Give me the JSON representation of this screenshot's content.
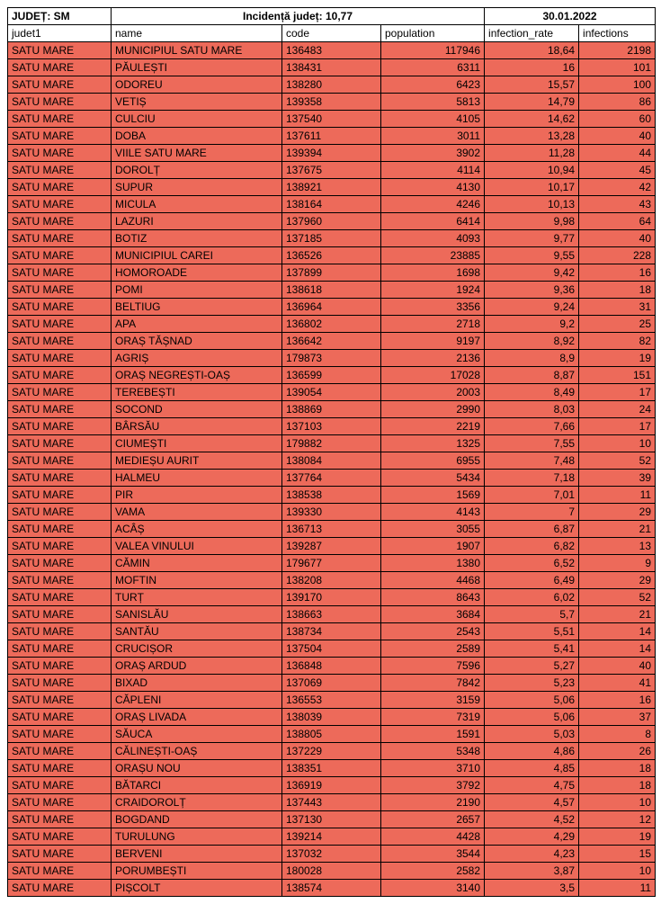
{
  "header": {
    "judet_label": "JUDEȚ: SM",
    "incidence_label": "Incidență județ: 10,77",
    "date": "30.01.2022"
  },
  "columns": {
    "judet1": "judet1",
    "name": "name",
    "code": "code",
    "population": "population",
    "infection_rate": "infection_rate",
    "infections": "infections"
  },
  "style": {
    "row_bg": "#ed6a5a",
    "border_color": "#000000",
    "header_bg": "#ffffff",
    "font_size": 12,
    "col_widths": {
      "judet": 115,
      "name": 190,
      "code": 110,
      "pop": 115,
      "rate": 105,
      "inf": 85
    },
    "align": {
      "judet": "left",
      "name": "left",
      "code": "left",
      "pop": "right",
      "rate": "right",
      "inf": "right"
    }
  },
  "rows": [
    {
      "judet": "SATU MARE",
      "name": "MUNICIPIUL SATU MARE",
      "code": "136483",
      "pop": "117946",
      "rate": "18,64",
      "inf": "2198"
    },
    {
      "judet": "SATU MARE",
      "name": "PĂULEȘTI",
      "code": "138431",
      "pop": "6311",
      "rate": "16",
      "inf": "101"
    },
    {
      "judet": "SATU MARE",
      "name": "ODOREU",
      "code": "138280",
      "pop": "6423",
      "rate": "15,57",
      "inf": "100"
    },
    {
      "judet": "SATU MARE",
      "name": "VETIȘ",
      "code": "139358",
      "pop": "5813",
      "rate": "14,79",
      "inf": "86"
    },
    {
      "judet": "SATU MARE",
      "name": "CULCIU",
      "code": "137540",
      "pop": "4105",
      "rate": "14,62",
      "inf": "60"
    },
    {
      "judet": "SATU MARE",
      "name": "DOBA",
      "code": "137611",
      "pop": "3011",
      "rate": "13,28",
      "inf": "40"
    },
    {
      "judet": "SATU MARE",
      "name": "VIILE SATU MARE",
      "code": "139394",
      "pop": "3902",
      "rate": "11,28",
      "inf": "44"
    },
    {
      "judet": "SATU MARE",
      "name": "DOROLȚ",
      "code": "137675",
      "pop": "4114",
      "rate": "10,94",
      "inf": "45"
    },
    {
      "judet": "SATU MARE",
      "name": "SUPUR",
      "code": "138921",
      "pop": "4130",
      "rate": "10,17",
      "inf": "42"
    },
    {
      "judet": "SATU MARE",
      "name": "MICULA",
      "code": "138164",
      "pop": "4246",
      "rate": "10,13",
      "inf": "43"
    },
    {
      "judet": "SATU MARE",
      "name": "LAZURI",
      "code": "137960",
      "pop": "6414",
      "rate": "9,98",
      "inf": "64"
    },
    {
      "judet": "SATU MARE",
      "name": "BOTIZ",
      "code": "137185",
      "pop": "4093",
      "rate": "9,77",
      "inf": "40"
    },
    {
      "judet": "SATU MARE",
      "name": "MUNICIPIUL CAREI",
      "code": "136526",
      "pop": "23885",
      "rate": "9,55",
      "inf": "228"
    },
    {
      "judet": "SATU MARE",
      "name": "HOMOROADE",
      "code": "137899",
      "pop": "1698",
      "rate": "9,42",
      "inf": "16"
    },
    {
      "judet": "SATU MARE",
      "name": "POMI",
      "code": "138618",
      "pop": "1924",
      "rate": "9,36",
      "inf": "18"
    },
    {
      "judet": "SATU MARE",
      "name": "BELTIUG",
      "code": "136964",
      "pop": "3356",
      "rate": "9,24",
      "inf": "31"
    },
    {
      "judet": "SATU MARE",
      "name": "APA",
      "code": "136802",
      "pop": "2718",
      "rate": "9,2",
      "inf": "25"
    },
    {
      "judet": "SATU MARE",
      "name": "ORAȘ TĂȘNAD",
      "code": "136642",
      "pop": "9197",
      "rate": "8,92",
      "inf": "82"
    },
    {
      "judet": "SATU MARE",
      "name": "AGRIȘ",
      "code": "179873",
      "pop": "2136",
      "rate": "8,9",
      "inf": "19"
    },
    {
      "judet": "SATU MARE",
      "name": "ORAȘ NEGREȘTI-OAȘ",
      "code": "136599",
      "pop": "17028",
      "rate": "8,87",
      "inf": "151"
    },
    {
      "judet": "SATU MARE",
      "name": "TEREBEȘTI",
      "code": "139054",
      "pop": "2003",
      "rate": "8,49",
      "inf": "17"
    },
    {
      "judet": "SATU MARE",
      "name": "SOCOND",
      "code": "138869",
      "pop": "2990",
      "rate": "8,03",
      "inf": "24"
    },
    {
      "judet": "SATU MARE",
      "name": "BÂRSĂU",
      "code": "137103",
      "pop": "2219",
      "rate": "7,66",
      "inf": "17"
    },
    {
      "judet": "SATU MARE",
      "name": "CIUMEȘTI",
      "code": "179882",
      "pop": "1325",
      "rate": "7,55",
      "inf": "10"
    },
    {
      "judet": "SATU MARE",
      "name": "MEDIEȘU AURIT",
      "code": "138084",
      "pop": "6955",
      "rate": "7,48",
      "inf": "52"
    },
    {
      "judet": "SATU MARE",
      "name": "HALMEU",
      "code": "137764",
      "pop": "5434",
      "rate": "7,18",
      "inf": "39"
    },
    {
      "judet": "SATU MARE",
      "name": "PIR",
      "code": "138538",
      "pop": "1569",
      "rate": "7,01",
      "inf": "11"
    },
    {
      "judet": "SATU MARE",
      "name": "VAMA",
      "code": "139330",
      "pop": "4143",
      "rate": "7",
      "inf": "29"
    },
    {
      "judet": "SATU MARE",
      "name": "ACÂȘ",
      "code": "136713",
      "pop": "3055",
      "rate": "6,87",
      "inf": "21"
    },
    {
      "judet": "SATU MARE",
      "name": "VALEA VINULUI",
      "code": "139287",
      "pop": "1907",
      "rate": "6,82",
      "inf": "13"
    },
    {
      "judet": "SATU MARE",
      "name": "CĂMIN",
      "code": "179677",
      "pop": "1380",
      "rate": "6,52",
      "inf": "9"
    },
    {
      "judet": "SATU MARE",
      "name": "MOFTIN",
      "code": "138208",
      "pop": "4468",
      "rate": "6,49",
      "inf": "29"
    },
    {
      "judet": "SATU MARE",
      "name": "TURȚ",
      "code": "139170",
      "pop": "8643",
      "rate": "6,02",
      "inf": "52"
    },
    {
      "judet": "SATU MARE",
      "name": "SANISLĂU",
      "code": "138663",
      "pop": "3684",
      "rate": "5,7",
      "inf": "21"
    },
    {
      "judet": "SATU MARE",
      "name": "SANTĂU",
      "code": "138734",
      "pop": "2543",
      "rate": "5,51",
      "inf": "14"
    },
    {
      "judet": "SATU MARE",
      "name": "CRUCIȘOR",
      "code": "137504",
      "pop": "2589",
      "rate": "5,41",
      "inf": "14"
    },
    {
      "judet": "SATU MARE",
      "name": "ORAȘ ARDUD",
      "code": "136848",
      "pop": "7596",
      "rate": "5,27",
      "inf": "40"
    },
    {
      "judet": "SATU MARE",
      "name": "BIXAD",
      "code": "137069",
      "pop": "7842",
      "rate": "5,23",
      "inf": "41"
    },
    {
      "judet": "SATU MARE",
      "name": "CĂPLENI",
      "code": "136553",
      "pop": "3159",
      "rate": "5,06",
      "inf": "16"
    },
    {
      "judet": "SATU MARE",
      "name": "ORAȘ LIVADA",
      "code": "138039",
      "pop": "7319",
      "rate": "5,06",
      "inf": "37"
    },
    {
      "judet": "SATU MARE",
      "name": "SĂUCA",
      "code": "138805",
      "pop": "1591",
      "rate": "5,03",
      "inf": "8"
    },
    {
      "judet": "SATU MARE",
      "name": "CĂLINEȘTI-OAȘ",
      "code": "137229",
      "pop": "5348",
      "rate": "4,86",
      "inf": "26"
    },
    {
      "judet": "SATU MARE",
      "name": "ORAȘU NOU",
      "code": "138351",
      "pop": "3710",
      "rate": "4,85",
      "inf": "18"
    },
    {
      "judet": "SATU MARE",
      "name": "BĂTARCI",
      "code": "136919",
      "pop": "3792",
      "rate": "4,75",
      "inf": "18"
    },
    {
      "judet": "SATU MARE",
      "name": "CRAIDOROLȚ",
      "code": "137443",
      "pop": "2190",
      "rate": "4,57",
      "inf": "10"
    },
    {
      "judet": "SATU MARE",
      "name": "BOGDAND",
      "code": "137130",
      "pop": "2657",
      "rate": "4,52",
      "inf": "12"
    },
    {
      "judet": "SATU MARE",
      "name": "TURULUNG",
      "code": "139214",
      "pop": "4428",
      "rate": "4,29",
      "inf": "19"
    },
    {
      "judet": "SATU MARE",
      "name": "BERVENI",
      "code": "137032",
      "pop": "3544",
      "rate": "4,23",
      "inf": "15"
    },
    {
      "judet": "SATU MARE",
      "name": "PORUMBEȘTI",
      "code": "180028",
      "pop": "2582",
      "rate": "3,87",
      "inf": "10"
    },
    {
      "judet": "SATU MARE",
      "name": "PIȘCOLT",
      "code": "138574",
      "pop": "3140",
      "rate": "3,5",
      "inf": "11"
    }
  ]
}
